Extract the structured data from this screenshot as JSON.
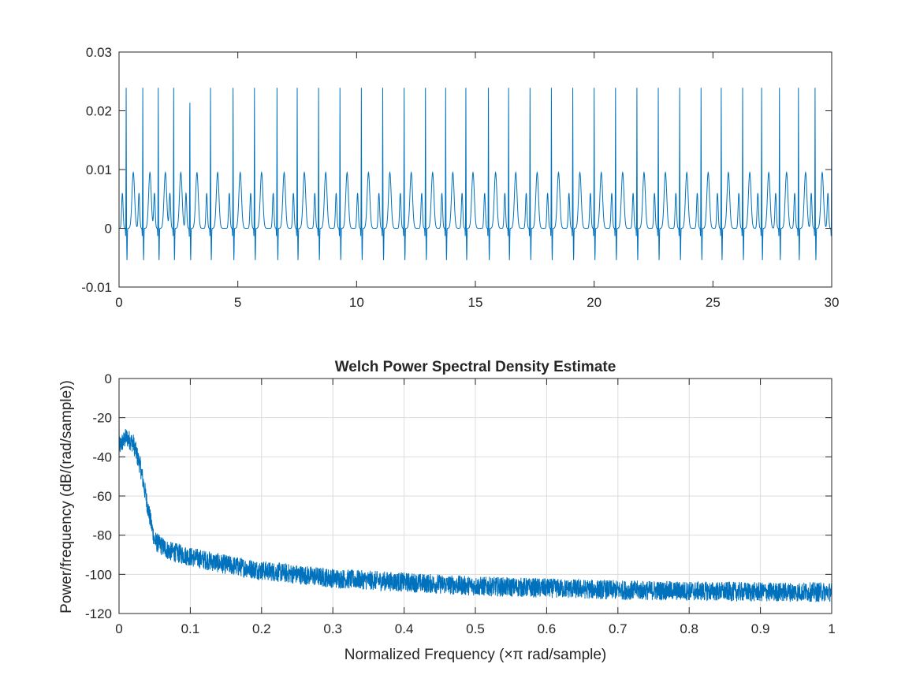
{
  "chart_data": [
    {
      "type": "line",
      "title": "",
      "xlabel": "",
      "ylabel": "",
      "xlim": [
        0,
        30
      ],
      "ylim": [
        -0.01,
        0.03
      ],
      "xticks": [
        0,
        5,
        10,
        15,
        20,
        25,
        30
      ],
      "yticks": [
        -0.01,
        0,
        0.01,
        0.02,
        0.03
      ],
      "xtick_labels": [
        "0",
        "5",
        "10",
        "15",
        "20",
        "25",
        "30"
      ],
      "ytick_labels": [
        "-0.01",
        "0",
        "0.01",
        "0.02",
        "0.03"
      ],
      "grid": false,
      "series": [
        {
          "color": "#0072bd",
          "description": "periodic ECG-like signal",
          "beat_times": [
            0.3,
            1.0,
            1.65,
            2.3,
            2.98,
            3.85,
            4.8,
            5.7,
            6.65,
            7.5,
            8.4,
            9.3,
            10.2,
            11.1,
            12.0,
            12.9,
            13.75,
            14.6,
            15.55,
            16.4,
            17.3,
            18.2,
            19.1,
            20.0,
            20.9,
            21.8,
            22.7,
            23.6,
            24.5,
            25.35,
            26.25,
            27.05,
            27.8,
            28.6,
            29.3,
            30.0
          ],
          "peak_value": 0.024,
          "trough_value": -0.0055,
          "t_wave_peak": 0.0095,
          "p_wave_peak": 0.006,
          "baseline": 0.0
        }
      ]
    },
    {
      "type": "line",
      "title": "Welch Power Spectral Density Estimate",
      "xlabel": "Normalized Frequency  (×π rad/sample)",
      "ylabel": "Power/frequency (dB/(rad/sample))",
      "xlim": [
        0,
        1
      ],
      "ylim": [
        -120,
        0
      ],
      "xticks": [
        0,
        0.1,
        0.2,
        0.3,
        0.4,
        0.5,
        0.6,
        0.7,
        0.8,
        0.9,
        1
      ],
      "yticks": [
        -120,
        -100,
        -80,
        -60,
        -40,
        -20,
        0
      ],
      "xtick_labels": [
        "0",
        "0.1",
        "0.2",
        "0.3",
        "0.4",
        "0.5",
        "0.6",
        "0.7",
        "0.8",
        "0.9",
        "1"
      ],
      "ytick_labels": [
        "-120",
        "-100",
        "-80",
        "-60",
        "-40",
        "-20",
        "0"
      ],
      "grid": true,
      "series": [
        {
          "color": "#0072bd",
          "description": "noisy PSD envelope",
          "x": [
            0,
            0.01,
            0.02,
            0.03,
            0.04,
            0.05,
            0.07,
            0.1,
            0.15,
            0.2,
            0.3,
            0.4,
            0.5,
            0.6,
            0.7,
            0.8,
            0.9,
            1.0
          ],
          "y_mean": [
            -35,
            -30,
            -33,
            -45,
            -65,
            -83,
            -88,
            -91,
            -95,
            -98,
            -102,
            -104,
            -106,
            -107,
            -108,
            -108.5,
            -109,
            -109
          ],
          "noise_band": 5
        }
      ]
    }
  ]
}
